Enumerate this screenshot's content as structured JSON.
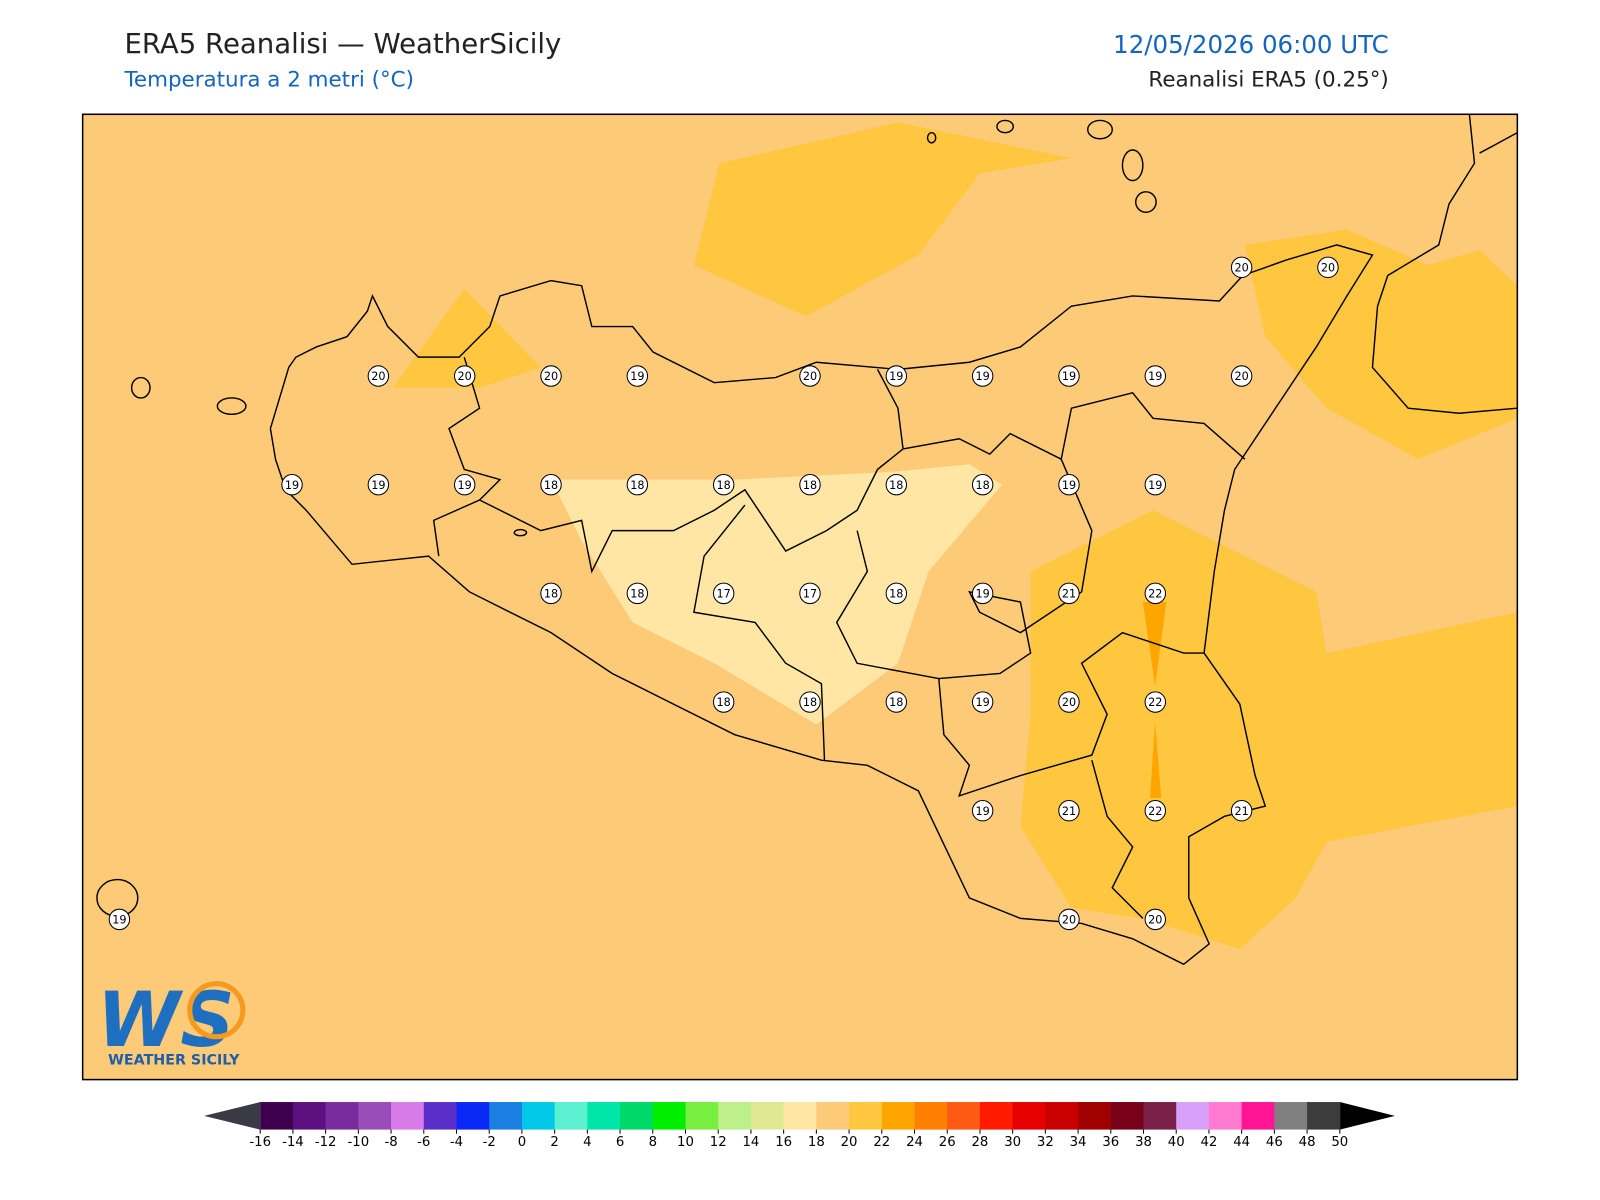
{
  "header": {
    "title": "ERA5 Reanalisi — WeatherSicily",
    "subtitle": "Temperatura a 2 metri (°C)",
    "datetime": "12/05/2026 06:00 UTC",
    "source": "Reanalisi ERA5 (0.25°)"
  },
  "logo": {
    "text": "WS",
    "tagline": "WEATHER SICILY"
  },
  "temperature_grid": [
    [
      null,
      null,
      null,
      null,
      null,
      null,
      null,
      null,
      null,
      null,
      null,
      null,
      null,
      20,
      20
    ],
    [
      null,
      null,
      null,
      20,
      20,
      20,
      19,
      null,
      20,
      19,
      19,
      19,
      19,
      20,
      null
    ],
    [
      null,
      null,
      19,
      19,
      19,
      18,
      18,
      18,
      18,
      18,
      18,
      19,
      19,
      null,
      null
    ],
    [
      null,
      null,
      null,
      null,
      null,
      18,
      18,
      17,
      17,
      18,
      19,
      21,
      22,
      null,
      null
    ],
    [
      null,
      null,
      null,
      null,
      null,
      null,
      null,
      18,
      18,
      18,
      19,
      20,
      22,
      null,
      null
    ],
    [
      null,
      null,
      null,
      null,
      null,
      null,
      null,
      null,
      null,
      null,
      19,
      21,
      22,
      21,
      null
    ],
    [
      19,
      null,
      null,
      null,
      null,
      null,
      null,
      null,
      null,
      null,
      null,
      20,
      20,
      null,
      null
    ]
  ],
  "colorbar": {
    "ticks": [
      -16,
      -14,
      -12,
      -10,
      -8,
      -6,
      -4,
      -2,
      0,
      2,
      4,
      6,
      8,
      10,
      12,
      14,
      16,
      18,
      20,
      22,
      24,
      26,
      28,
      30,
      32,
      34,
      36,
      38,
      40,
      42,
      44,
      46,
      48,
      50
    ],
    "colors": [
      "#3f0050",
      "#5c1080",
      "#7a2b9e",
      "#9a4db8",
      "#d87ae8",
      "#5a2ec8",
      "#0a28f5",
      "#1a7fe0",
      "#00c8e6",
      "#5af0d0",
      "#00e6a8",
      "#00d86a",
      "#00ee00",
      "#78ee40",
      "#bdf08a",
      "#e0e894",
      "#ffe6a5",
      "#fdca78",
      "#ffc640",
      "#ffa500",
      "#ff8000",
      "#ff5a14",
      "#ff1a00",
      "#e60000",
      "#c80000",
      "#a00000",
      "#780018",
      "#7a2048",
      "#d8a0f8",
      "#ff7ad0",
      "#ff1493",
      "#808080",
      "#3c3c3c"
    ],
    "under_color": "#3a3a46",
    "over_color": "#000000"
  }
}
